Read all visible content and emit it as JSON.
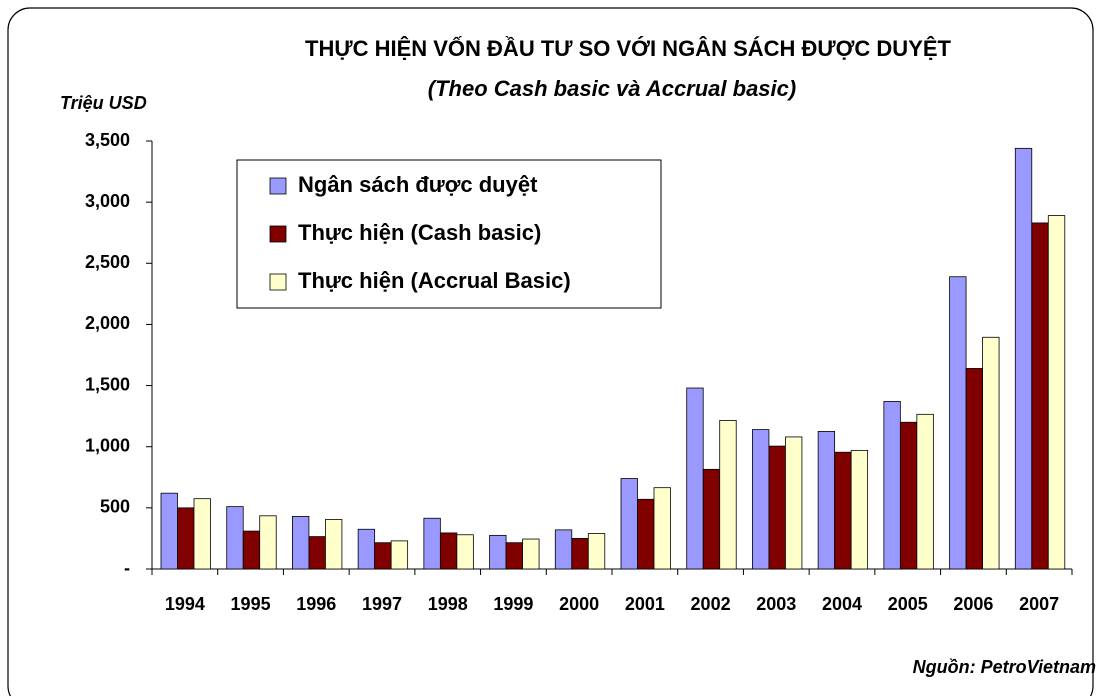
{
  "chart_data": {
    "type": "bar",
    "title": "THỰC HIỆN VỐN ĐẦU TƯ SO VỚI NGÂN SÁCH ĐƯỢC DUYỆT",
    "subtitle": "(Theo Cash basic và Accrual basic)",
    "y_axis_label": "Triệu USD",
    "source": "Nguồn: PetroVietnam",
    "categories": [
      "1994",
      "1995",
      "1996",
      "1997",
      "1998",
      "1999",
      "2000",
      "2001",
      "2002",
      "2003",
      "2004",
      "2005",
      "2006",
      "2007"
    ],
    "series": [
      {
        "name": "Ngân sách được duyệt",
        "color": "#9999ff",
        "values": [
          620,
          510,
          430,
          325,
          415,
          275,
          320,
          740,
          1480,
          1140,
          1125,
          1370,
          2390,
          3440
        ]
      },
      {
        "name": "Thực hiện (Cash basic)",
        "color": "#800000",
        "values": [
          500,
          310,
          265,
          215,
          295,
          215,
          250,
          570,
          815,
          1005,
          955,
          1200,
          1640,
          2830
        ]
      },
      {
        "name": "Thực hiện (Accrual Basic)",
        "color": "#ffffcc",
        "values": [
          575,
          435,
          405,
          230,
          280,
          245,
          290,
          665,
          1215,
          1080,
          970,
          1265,
          1895,
          2890
        ]
      }
    ],
    "ylim": [
      0,
      3500
    ],
    "yticks": [
      {
        "value": 0,
        "label": "-"
      },
      500,
      {
        "value": 1000,
        "label": "1,000"
      },
      {
        "value": 1500,
        "label": "1,500"
      },
      {
        "value": 2000,
        "label": "2,000"
      },
      {
        "value": 2500,
        "label": "2,500"
      },
      {
        "value": 3000,
        "label": "3,000"
      },
      {
        "value": 3500,
        "label": "3,500"
      }
    ],
    "legend": "upper left"
  }
}
